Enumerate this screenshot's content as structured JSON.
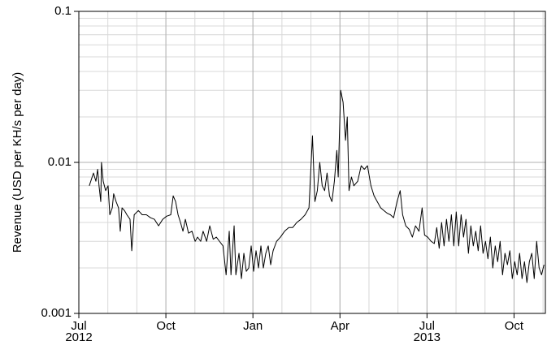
{
  "chart_data": {
    "type": "line",
    "y_label": "Revenue (USD per KH/s per day)",
    "y_log": true,
    "grid": true,
    "color": "#000000",
    "xlim": [
      2012.5,
      2013.84
    ],
    "xticks": [
      {
        "value": 2012.5,
        "label": "Jul 2012"
      },
      {
        "value": 2012.75,
        "label": "Oct"
      },
      {
        "value": 2013.0,
        "label": "Jan"
      },
      {
        "value": 2013.25,
        "label": "Apr"
      },
      {
        "value": 2013.5,
        "label": "Jul 2013"
      },
      {
        "value": 2013.75,
        "label": "Oct"
      }
    ],
    "ylim": [
      0.001,
      0.1
    ],
    "yticks": [
      0.001,
      0.01,
      0.1
    ],
    "x": [
      2012.53,
      2012.542,
      2012.549,
      2012.554,
      2012.558,
      2012.563,
      2012.565,
      2012.57,
      2012.577,
      2012.584,
      2012.589,
      2012.596,
      2012.6,
      2012.607,
      2012.614,
      2012.619,
      2012.624,
      2012.631,
      2012.638,
      2012.647,
      2012.652,
      2012.659,
      2012.671,
      2012.682,
      2012.694,
      2012.706,
      2012.717,
      2012.729,
      2012.741,
      2012.752,
      2012.764,
      2012.771,
      2012.778,
      2012.785,
      2012.792,
      2012.799,
      2012.806,
      2012.815,
      2012.825,
      2012.834,
      2012.841,
      2012.85,
      2012.857,
      2012.867,
      2012.876,
      2012.886,
      2012.895,
      2012.904,
      2012.914,
      2012.923,
      2012.932,
      2012.937,
      2012.946,
      2012.951,
      2012.96,
      2012.967,
      2012.974,
      2012.981,
      2012.988,
      2012.995,
      2013.002,
      2013.009,
      2013.016,
      2013.023,
      2013.03,
      2013.037,
      2013.044,
      2013.051,
      2013.058,
      2013.068,
      2013.079,
      2013.091,
      2013.103,
      2013.114,
      2013.126,
      2013.138,
      2013.15,
      2013.161,
      2013.171,
      2013.178,
      2013.185,
      2013.192,
      2013.199,
      2013.206,
      2013.213,
      2013.22,
      2013.227,
      2013.234,
      2013.241,
      2013.245,
      2013.252,
      2013.259,
      2013.266,
      2013.271,
      2013.276,
      2013.283,
      2013.29,
      2013.301,
      2013.311,
      2013.32,
      2013.329,
      2013.339,
      2013.348,
      2013.357,
      2013.367,
      2013.376,
      2013.386,
      2013.395,
      2013.404,
      2013.414,
      2013.423,
      2013.43,
      2013.439,
      2013.449,
      2013.458,
      2013.467,
      2013.477,
      2013.486,
      2013.493,
      2013.502,
      2013.512,
      2013.521,
      2013.528,
      2013.535,
      2013.542,
      2013.549,
      2013.556,
      2013.563,
      2013.57,
      2013.577,
      2013.584,
      2013.591,
      2013.598,
      2013.605,
      2013.612,
      2013.619,
      2013.626,
      2013.633,
      2013.64,
      2013.647,
      2013.654,
      2013.661,
      2013.668,
      2013.675,
      2013.682,
      2013.689,
      2013.696,
      2013.703,
      2013.71,
      2013.717,
      2013.724,
      2013.731,
      2013.738,
      2013.745,
      2013.752,
      2013.759,
      2013.766,
      2013.773,
      2013.78,
      2013.787,
      2013.794,
      2013.801,
      2013.808,
      2013.815,
      2013.822,
      2013.829,
      2013.836
    ],
    "values": [
      0.007,
      0.0085,
      0.0075,
      0.009,
      0.007,
      0.0055,
      0.01,
      0.0075,
      0.0065,
      0.007,
      0.0045,
      0.005,
      0.0062,
      0.0055,
      0.005,
      0.0035,
      0.005,
      0.0048,
      0.0045,
      0.0042,
      0.0026,
      0.0045,
      0.0048,
      0.0045,
      0.0045,
      0.0043,
      0.0042,
      0.0038,
      0.0042,
      0.0044,
      0.0045,
      0.006,
      0.0055,
      0.0045,
      0.004,
      0.0035,
      0.0042,
      0.0034,
      0.0035,
      0.003,
      0.0032,
      0.003,
      0.0035,
      0.003,
      0.0038,
      0.0031,
      0.0032,
      0.003,
      0.0028,
      0.0018,
      0.0035,
      0.0018,
      0.0038,
      0.0018,
      0.0025,
      0.0017,
      0.0025,
      0.0019,
      0.002,
      0.0028,
      0.0019,
      0.0026,
      0.002,
      0.0028,
      0.002,
      0.0025,
      0.0028,
      0.0021,
      0.0026,
      0.003,
      0.0032,
      0.0035,
      0.0037,
      0.0037,
      0.004,
      0.0042,
      0.0045,
      0.005,
      0.015,
      0.0055,
      0.0065,
      0.01,
      0.007,
      0.0065,
      0.0085,
      0.006,
      0.0055,
      0.0075,
      0.012,
      0.008,
      0.03,
      0.025,
      0.014,
      0.02,
      0.0065,
      0.008,
      0.007,
      0.0075,
      0.0095,
      0.009,
      0.0095,
      0.007,
      0.006,
      0.0055,
      0.005,
      0.0048,
      0.0046,
      0.0045,
      0.0043,
      0.0055,
      0.0065,
      0.0045,
      0.0038,
      0.0036,
      0.0032,
      0.0038,
      0.0035,
      0.005,
      0.0033,
      0.0032,
      0.003,
      0.0029,
      0.0037,
      0.0027,
      0.004,
      0.0028,
      0.0042,
      0.003,
      0.0045,
      0.0028,
      0.0047,
      0.0028,
      0.0045,
      0.0032,
      0.0042,
      0.0025,
      0.0038,
      0.0028,
      0.0035,
      0.0026,
      0.0038,
      0.0025,
      0.003,
      0.0023,
      0.0032,
      0.002,
      0.0028,
      0.0022,
      0.003,
      0.0018,
      0.0025,
      0.0021,
      0.0026,
      0.0017,
      0.0022,
      0.0018,
      0.0025,
      0.0017,
      0.0022,
      0.0016,
      0.0022,
      0.0025,
      0.0017,
      0.003,
      0.002,
      0.0018,
      0.0021
    ]
  }
}
